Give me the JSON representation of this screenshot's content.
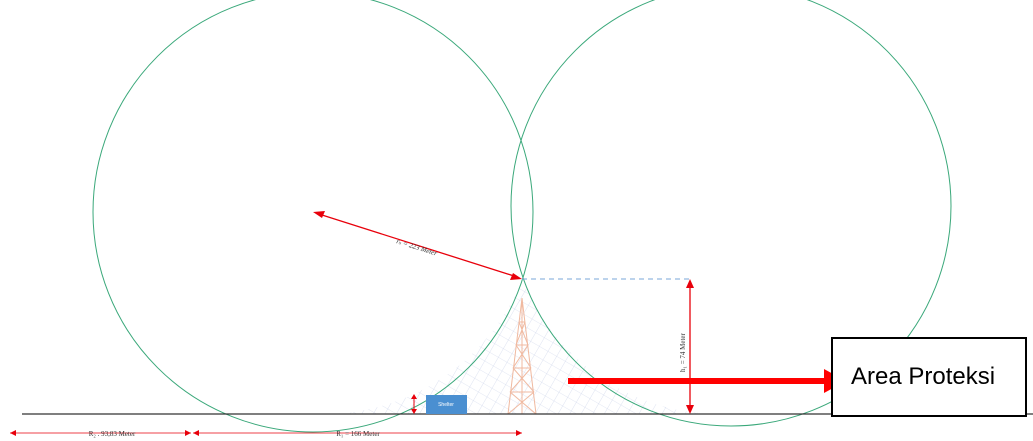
{
  "colors": {
    "circle": "#3aa87a",
    "dimension": "#e8000b",
    "ground": "#333333",
    "tower": "#f0b9a0",
    "mesh": "#c8d0e8",
    "shelter": "#4a8fd1",
    "dashed": "#7aa7d8",
    "arrow": "#ff0000"
  },
  "labels": {
    "radius": "rₛ = 223 Meter",
    "height": "h₁ = 74 Meter",
    "r2": "R₂ . 93,83 Meter",
    "r1": "R₁ = 166 Meter",
    "shelter": "Shelter"
  },
  "legend": {
    "label": "Area Proteksi"
  }
}
